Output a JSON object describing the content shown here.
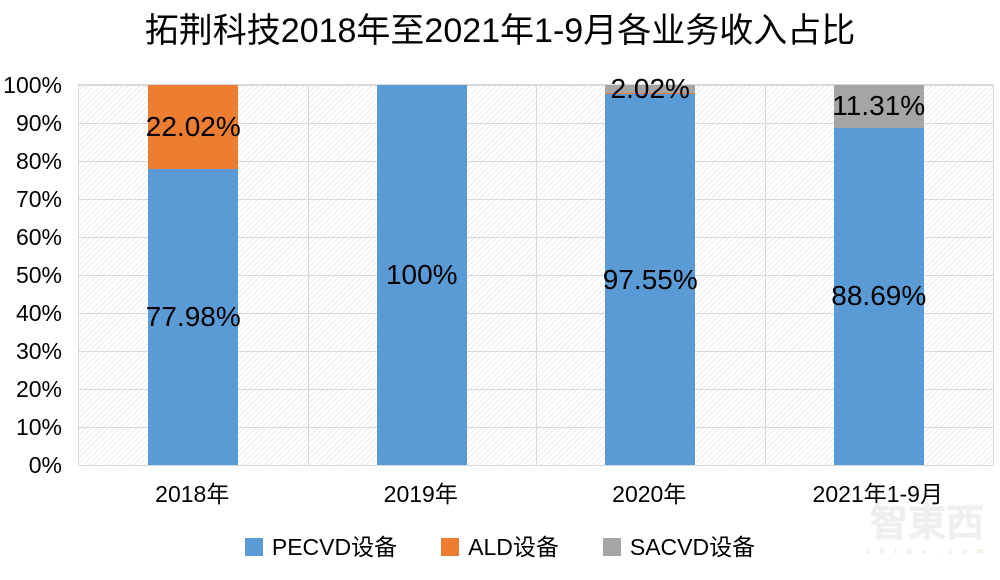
{
  "chart_data": {
    "type": "bar",
    "stacked": true,
    "percent": true,
    "title": "拓荆科技2018年至2021年1-9月各业务收入占比",
    "categories": [
      "2018年",
      "2019年",
      "2020年",
      "2021年1-9月"
    ],
    "series": [
      {
        "name": "PECVD设备",
        "color": "#5B9BD5",
        "values": [
          77.98,
          100,
          97.55,
          88.69
        ],
        "labels": [
          "77.98%",
          "100%",
          "97.55%",
          "88.69%"
        ]
      },
      {
        "name": "ALD设备",
        "color": "#ED7D31",
        "values": [
          22.02,
          0,
          0.43,
          0
        ],
        "labels": [
          "22.02%",
          null,
          null,
          null
        ]
      },
      {
        "name": "SACVD设备",
        "color": "#A5A5A5",
        "values": [
          0,
          0,
          2.02,
          11.31
        ],
        "labels": [
          null,
          null,
          "2.02%",
          "11.31%"
        ]
      }
    ],
    "y_ticks": [
      "0%",
      "10%",
      "20%",
      "30%",
      "40%",
      "50%",
      "60%",
      "70%",
      "80%",
      "90%",
      "100%"
    ],
    "ylim": [
      0,
      100
    ],
    "grid": true,
    "legend_position": "bottom"
  },
  "colors": {
    "gridline": "#D9D9D9",
    "plot_hatch": "#ECECEC",
    "label_text": "#000000"
  },
  "watermark": {
    "text": "智東西",
    "subtext": "z h i d x . c o m"
  }
}
